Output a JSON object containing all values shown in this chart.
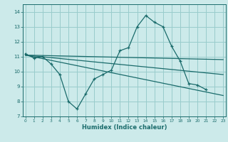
{
  "y_main": [
    11.2,
    10.9,
    11.0,
    10.5,
    9.8,
    8.0,
    7.5,
    8.5,
    9.5,
    9.8,
    10.1,
    11.4,
    11.6,
    13.0,
    13.75,
    13.3,
    13.0,
    11.7,
    10.7,
    9.2,
    9.1,
    8.8
  ],
  "x_main": [
    0,
    1,
    2,
    3,
    4,
    5,
    6,
    7,
    8,
    9,
    10,
    11,
    12,
    13,
    14,
    15,
    16,
    17,
    18,
    19,
    20,
    21
  ],
  "y_flat_start": 11.1,
  "y_flat_end": 10.8,
  "x_diag1_start": 11.1,
  "x_diag1_end": 8.4,
  "x_diag2_start": 11.1,
  "x_diag2_end": 9.8,
  "x_start": 0,
  "x_end": 23,
  "line_color": "#1a6b6b",
  "bg_color": "#cceaea",
  "grid_color": "#99cccc",
  "xlabel": "Humidex (Indice chaleur)",
  "ylim": [
    7,
    14.5
  ],
  "xlim": [
    -0.3,
    23.3
  ],
  "yticks": [
    7,
    8,
    9,
    10,
    11,
    12,
    13,
    14
  ],
  "xticks": [
    0,
    1,
    2,
    3,
    4,
    5,
    6,
    7,
    8,
    9,
    10,
    11,
    12,
    13,
    14,
    15,
    16,
    17,
    18,
    19,
    20,
    21,
    22,
    23
  ]
}
